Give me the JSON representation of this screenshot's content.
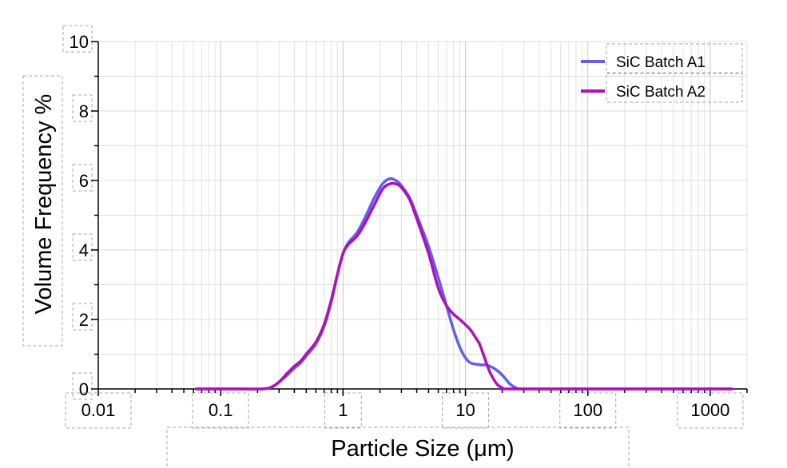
{
  "chart_data": {
    "type": "line",
    "title": "",
    "xlabel": "Particle Size (μm)",
    "ylabel": "Volume Frequency %",
    "x_scale": "log",
    "xlim": [
      0.01,
      2000
    ],
    "ylim": [
      0,
      10
    ],
    "x_ticks": [
      0.01,
      0.1,
      1,
      10,
      100,
      1000
    ],
    "x_tick_labels": [
      "0.01",
      "0.1",
      "1",
      "10",
      "100",
      "1000"
    ],
    "y_ticks": [
      0,
      2,
      4,
      6,
      8,
      10
    ],
    "y_tick_labels": [
      "0",
      "2",
      "4",
      "6",
      "8",
      "10"
    ],
    "grid": true,
    "legend": "top-right",
    "series": [
      {
        "name": "SiC Batch A1",
        "color": "#5f5ff0",
        "points": [
          [
            0.063,
            0
          ],
          [
            0.15,
            0
          ],
          [
            0.22,
            0
          ],
          [
            0.26,
            0.05
          ],
          [
            0.3,
            0.2
          ],
          [
            0.35,
            0.4
          ],
          [
            0.4,
            0.6
          ],
          [
            0.45,
            0.75
          ],
          [
            0.5,
            0.95
          ],
          [
            0.6,
            1.3
          ],
          [
            0.7,
            1.8
          ],
          [
            0.8,
            2.5
          ],
          [
            0.9,
            3.3
          ],
          [
            1.0,
            3.9
          ],
          [
            1.1,
            4.2
          ],
          [
            1.3,
            4.5
          ],
          [
            1.5,
            4.9
          ],
          [
            1.8,
            5.5
          ],
          [
            2.1,
            5.9
          ],
          [
            2.4,
            6.05
          ],
          [
            2.7,
            6.0
          ],
          [
            3.0,
            5.85
          ],
          [
            3.5,
            5.5
          ],
          [
            4.0,
            5.0
          ],
          [
            5.0,
            4.1
          ],
          [
            6.0,
            3.2
          ],
          [
            7.0,
            2.4
          ],
          [
            8.0,
            1.7
          ],
          [
            9.0,
            1.2
          ],
          [
            10.0,
            0.9
          ],
          [
            11.0,
            0.75
          ],
          [
            13.0,
            0.7
          ],
          [
            15.0,
            0.68
          ],
          [
            17.0,
            0.6
          ],
          [
            20.0,
            0.4
          ],
          [
            23.0,
            0.15
          ],
          [
            26.0,
            0.03
          ],
          [
            30.0,
            0
          ],
          [
            100.0,
            0
          ],
          [
            1500.0,
            0
          ]
        ]
      },
      {
        "name": "SiC Batch A2",
        "color": "#b010b8",
        "points": [
          [
            0.063,
            0
          ],
          [
            0.15,
            0
          ],
          [
            0.22,
            0
          ],
          [
            0.26,
            0.05
          ],
          [
            0.3,
            0.2
          ],
          [
            0.35,
            0.45
          ],
          [
            0.4,
            0.65
          ],
          [
            0.45,
            0.8
          ],
          [
            0.5,
            1.0
          ],
          [
            0.6,
            1.35
          ],
          [
            0.7,
            1.85
          ],
          [
            0.8,
            2.55
          ],
          [
            0.9,
            3.3
          ],
          [
            1.0,
            3.9
          ],
          [
            1.1,
            4.15
          ],
          [
            1.3,
            4.4
          ],
          [
            1.5,
            4.75
          ],
          [
            1.8,
            5.3
          ],
          [
            2.1,
            5.75
          ],
          [
            2.4,
            5.9
          ],
          [
            2.7,
            5.9
          ],
          [
            3.0,
            5.8
          ],
          [
            3.5,
            5.45
          ],
          [
            4.0,
            4.9
          ],
          [
            5.0,
            3.9
          ],
          [
            6.0,
            2.9
          ],
          [
            7.0,
            2.4
          ],
          [
            8.0,
            2.15
          ],
          [
            9.0,
            2.0
          ],
          [
            10.0,
            1.85
          ],
          [
            11.0,
            1.7
          ],
          [
            12.0,
            1.5
          ],
          [
            13.0,
            1.3
          ],
          [
            14.0,
            1.0
          ],
          [
            15.0,
            0.7
          ],
          [
            16.0,
            0.45
          ],
          [
            18.0,
            0.15
          ],
          [
            20.0,
            0.03
          ],
          [
            22.0,
            0
          ],
          [
            100.0,
            0
          ],
          [
            1500.0,
            0
          ]
        ]
      }
    ]
  }
}
